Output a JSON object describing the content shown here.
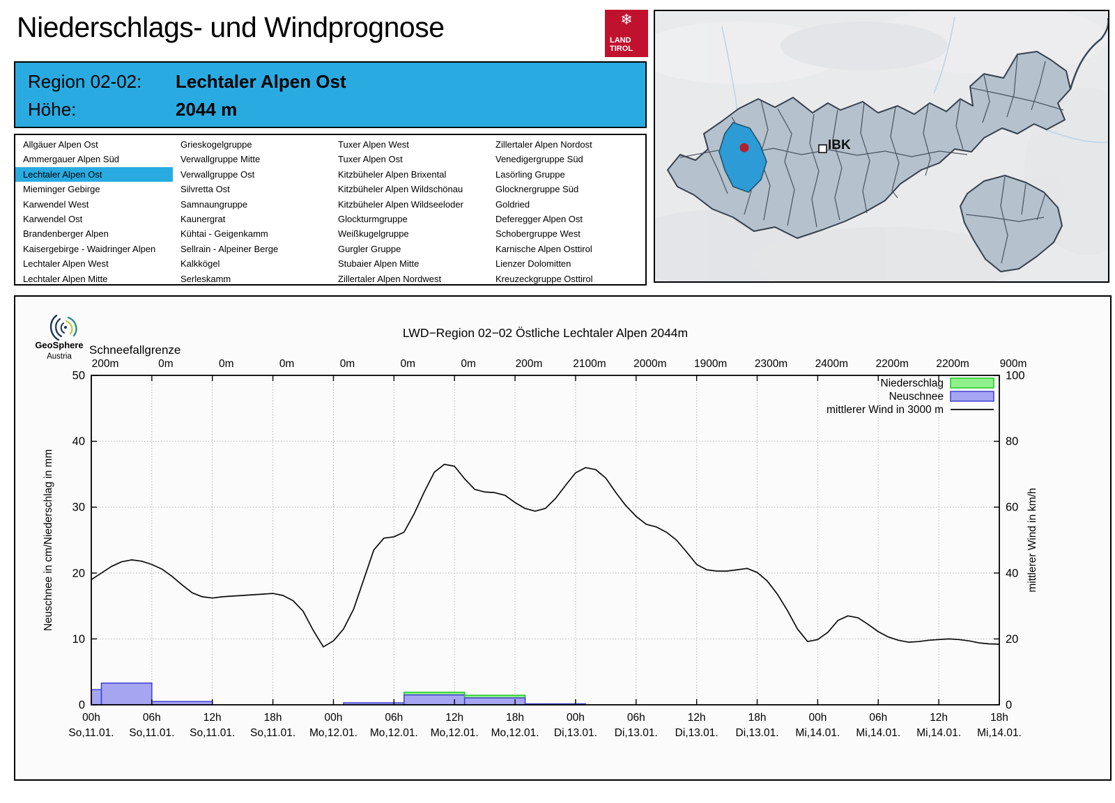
{
  "accent_color": "#29abe2",
  "header": {
    "title": "Niederschlags- und Windprognose",
    "logo": {
      "snowflake": "❄",
      "line1": "LAND",
      "line2": "TIROL",
      "color": "#c0122f"
    }
  },
  "region_box": {
    "label1": "Region 02-02:",
    "value1": "Lechtaler Alpen Ost",
    "label2": "Höhe:",
    "value2": "2044 m"
  },
  "region_list": {
    "selected": "Lechtaler Alpen Ost",
    "columns": [
      [
        "Allgäuer Alpen Ost",
        "Ammergauer Alpen Süd",
        "Lechtaler Alpen Ost",
        "Mieminger Gebirge",
        "Karwendel West",
        "Karwendel Ost",
        "Brandenberger Alpen",
        "Kaisergebirge - Waidringer Alpen",
        "Lechtaler Alpen West",
        "Lechtaler Alpen Mitte"
      ],
      [
        "Grieskogelgruppe",
        "Verwallgruppe Mitte",
        "Verwallgruppe Ost",
        "Silvretta Ost",
        "Samnaungruppe",
        "Kaunergrat",
        "Kühtai - Geigenkamm",
        "Sellrain - Alpeiner Berge",
        "Kalkkögel",
        "Serleskamm"
      ],
      [
        "Tuxer Alpen West",
        "Tuxer Alpen Ost",
        "Kitzbüheler Alpen Brixental",
        "Kitzbüheler Alpen Wildschönau",
        "Kitzbüheler Alpen Wildseeloder",
        "Glockturmgruppe",
        "Weißkugelgruppe",
        "Gurgler Gruppe",
        "Stubaier Alpen Mitte",
        "Zillertaler Alpen Nordwest"
      ],
      [
        "Zillertaler Alpen Nordost",
        "Venedigergruppe Süd",
        "Lasörling Gruppe",
        "Glocknergruppe Süd",
        "Goldried",
        "Deferegger Alpen Ost",
        "Schobergruppe West",
        "Karnische Alpen Osttirol",
        "Lienzer Dolomitten",
        "Kreuzeckgruppe Osttirol"
      ]
    ]
  },
  "map": {
    "marker_label": "IBK",
    "highlight_color": "#2d9bd6",
    "region_fill": "#b5c1cc",
    "region_stroke": "#35404d",
    "dot_color": "#b51f2e"
  },
  "chart": {
    "branding": {
      "name": "GeoSphere",
      "country": "Austria"
    },
    "chart_data": {
      "type": "line+bar",
      "title": "LWD−Region 02−02 Östliche Lechtaler Alpen 2044m",
      "x_range_hours": [
        0,
        90
      ],
      "x_tick_interval_h": 6,
      "x_ticks": [
        {
          "hour": 0,
          "time": "00h",
          "day": "So,11.01."
        },
        {
          "hour": 6,
          "time": "06h",
          "day": "So,11.01."
        },
        {
          "hour": 12,
          "time": "12h",
          "day": "So,11.01."
        },
        {
          "hour": 18,
          "time": "18h",
          "day": "So,11.01."
        },
        {
          "hour": 24,
          "time": "00h",
          "day": "Mo,12.01."
        },
        {
          "hour": 30,
          "time": "06h",
          "day": "Mo,12.01."
        },
        {
          "hour": 36,
          "time": "12h",
          "day": "Mo,12.01."
        },
        {
          "hour": 42,
          "time": "18h",
          "day": "Mo,12.01."
        },
        {
          "hour": 48,
          "time": "00h",
          "day": "Di,13.01."
        },
        {
          "hour": 54,
          "time": "06h",
          "day": "Di,13.01."
        },
        {
          "hour": 60,
          "time": "12h",
          "day": "Di,13.01."
        },
        {
          "hour": 66,
          "time": "18h",
          "day": "Di,13.01."
        },
        {
          "hour": 72,
          "time": "00h",
          "day": "Mi,14.01."
        },
        {
          "hour": 78,
          "time": "06h",
          "day": "Mi,14.01."
        },
        {
          "hour": 84,
          "time": "12h",
          "day": "Mi,14.01."
        },
        {
          "hour": 90,
          "time": "18h",
          "day": "Mi,14.01."
        }
      ],
      "snowfall_line": {
        "label": "Schneefallgrenze",
        "values": [
          "200m",
          "0m",
          "0m",
          "0m",
          "0m",
          "0m",
          "0m",
          "200m",
          "2100m",
          "2000m",
          "1900m",
          "2300m",
          "2400m",
          "2200m",
          "2200m",
          "900m"
        ]
      },
      "y_left": {
        "title": "Neuschnee in cm/Niederschlag in mm",
        "min": 0,
        "max": 50,
        "ticks": [
          0,
          10,
          20,
          30,
          40,
          50
        ]
      },
      "y_right": {
        "title": "mittlerer Wind in km/h",
        "min": 0,
        "max": 100,
        "ticks": [
          0,
          20,
          40,
          60,
          80,
          100
        ]
      },
      "legend": [
        {
          "label": "Niederschlag",
          "type": "box",
          "fill": "#90f08e",
          "border": "#1ec91e"
        },
        {
          "label": "Neuschnee",
          "type": "box",
          "fill": "#a5a5f2",
          "border": "#4040d2"
        },
        {
          "label": "mittlerer Wind in 3000 m",
          "type": "line",
          "color": "#000000"
        }
      ],
      "grid": true,
      "bars_6h": [
        {
          "from_h": 0,
          "to_h": 1,
          "neuschnee_cm": 2.3,
          "niederschlag_mm": null
        },
        {
          "from_h": 1,
          "to_h": 6,
          "neuschnee_cm": 3.3,
          "niederschlag_mm": null
        },
        {
          "from_h": 6,
          "to_h": 12,
          "neuschnee_cm": 0.5,
          "niederschlag_mm": null
        },
        {
          "from_h": 25,
          "to_h": 31,
          "neuschnee_cm": 0.3,
          "niederschlag_mm": null
        },
        {
          "from_h": 31,
          "to_h": 37,
          "neuschnee_cm": 1.5,
          "niederschlag_mm": 1.9
        },
        {
          "from_h": 37,
          "to_h": 43,
          "neuschnee_cm": 1.05,
          "niederschlag_mm": 1.45
        },
        {
          "from_h": 43,
          "to_h": 49,
          "neuschnee_cm": 0.15,
          "niederschlag_mm": null
        }
      ],
      "wind_kmh": [
        [
          0,
          38
        ],
        [
          1,
          40
        ],
        [
          2,
          42
        ],
        [
          3,
          43.4
        ],
        [
          4,
          44
        ],
        [
          5,
          43.6
        ],
        [
          6,
          42.6
        ],
        [
          7,
          41.2
        ],
        [
          8,
          39
        ],
        [
          9,
          36.4
        ],
        [
          10,
          34
        ],
        [
          11,
          32.8
        ],
        [
          12,
          32.4
        ],
        [
          13,
          32.8
        ],
        [
          14,
          33
        ],
        [
          15,
          33.2
        ],
        [
          16,
          33.4
        ],
        [
          17,
          33.6
        ],
        [
          18,
          33.8
        ],
        [
          19,
          33.2
        ],
        [
          20,
          31.6
        ],
        [
          21,
          28.4
        ],
        [
          22,
          22.6
        ],
        [
          23,
          17.6
        ],
        [
          24,
          19.4
        ],
        [
          25,
          23
        ],
        [
          26,
          29
        ],
        [
          27,
          38
        ],
        [
          28,
          47
        ],
        [
          29,
          50.6
        ],
        [
          30,
          51
        ],
        [
          31,
          52.4
        ],
        [
          32,
          58
        ],
        [
          33,
          64.6
        ],
        [
          34,
          70.6
        ],
        [
          35,
          73
        ],
        [
          36,
          72.4
        ],
        [
          37,
          68.6
        ],
        [
          38,
          65.4
        ],
        [
          39,
          64.6
        ],
        [
          40,
          64.4
        ],
        [
          41,
          63.6
        ],
        [
          42,
          61.4
        ],
        [
          43,
          59.6
        ],
        [
          44,
          58.8
        ],
        [
          45,
          59.6
        ],
        [
          46,
          62.6
        ],
        [
          47,
          66.6
        ],
        [
          48,
          70.4
        ],
        [
          49,
          72
        ],
        [
          50,
          71.4
        ],
        [
          51,
          68.8
        ],
        [
          52,
          64.4
        ],
        [
          53,
          60.4
        ],
        [
          54,
          57.2
        ],
        [
          55,
          54.8
        ],
        [
          56,
          54
        ],
        [
          57,
          52.4
        ],
        [
          58,
          50
        ],
        [
          59,
          46.4
        ],
        [
          60,
          42.6
        ],
        [
          61,
          41
        ],
        [
          62,
          40.6
        ],
        [
          63,
          40.6
        ],
        [
          64,
          41
        ],
        [
          65,
          41.4
        ],
        [
          66,
          40.2
        ],
        [
          67,
          37.6
        ],
        [
          68,
          33.6
        ],
        [
          69,
          28.6
        ],
        [
          70,
          23
        ],
        [
          71,
          19.2
        ],
        [
          72,
          19.8
        ],
        [
          73,
          22
        ],
        [
          74,
          25.6
        ],
        [
          75,
          27
        ],
        [
          76,
          26.4
        ],
        [
          77,
          24.4
        ],
        [
          78,
          22.2
        ],
        [
          79,
          20.6
        ],
        [
          80,
          19.6
        ],
        [
          81,
          19
        ],
        [
          82,
          19.2
        ],
        [
          83,
          19.6
        ],
        [
          84,
          19.8
        ],
        [
          85,
          20
        ],
        [
          86,
          19.8
        ],
        [
          87,
          19.4
        ],
        [
          88,
          18.8
        ],
        [
          89,
          18.5
        ],
        [
          90,
          18.4
        ]
      ]
    }
  }
}
